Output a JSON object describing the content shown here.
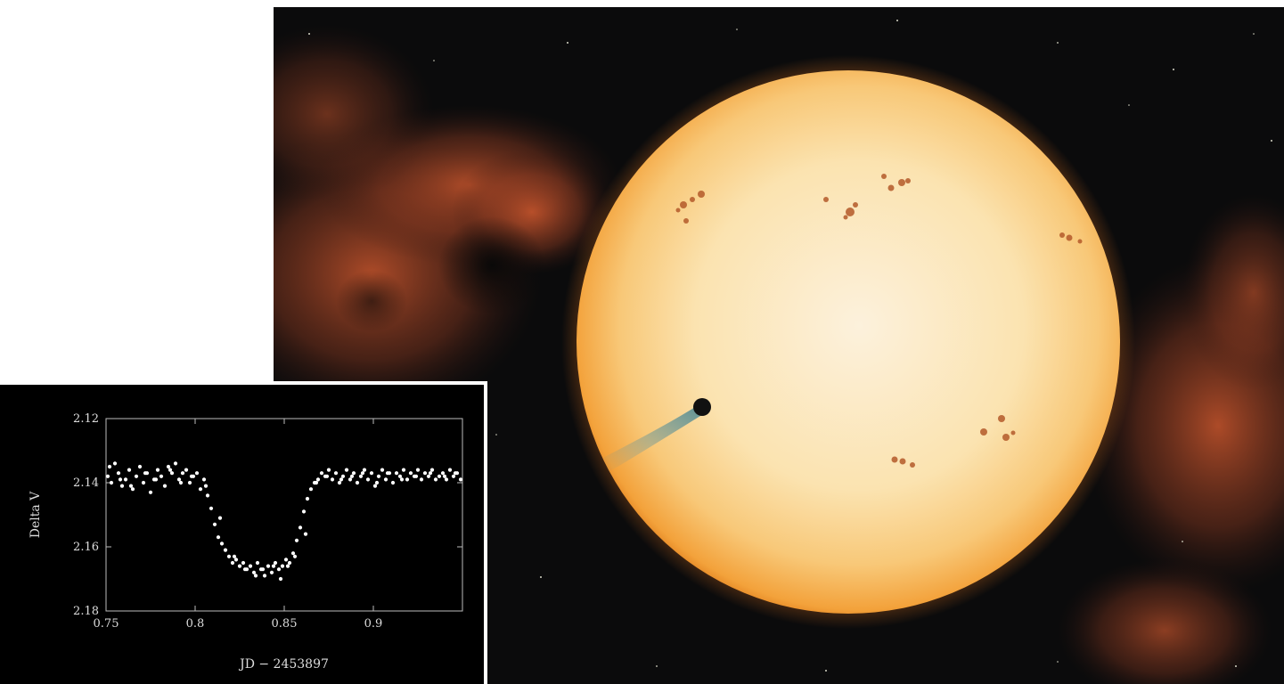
{
  "chart_data": {
    "type": "scatter",
    "title": "",
    "xlabel": "JD − 2453897",
    "ylabel": "Delta V",
    "xlim": [
      0.75,
      0.95
    ],
    "ylim": [
      2.12,
      2.18
    ],
    "y_inverted": true,
    "x_ticks": [
      0.75,
      0.8,
      0.85,
      0.9
    ],
    "x_tick_labels": [
      "0.75",
      "0.8",
      "0.85",
      "0.9"
    ],
    "y_ticks": [
      2.12,
      2.14,
      2.16,
      2.18
    ],
    "y_tick_labels": [
      "2.12",
      "2.14",
      "2.16",
      "2.18"
    ],
    "grid": false,
    "point_color": "#ffffff",
    "background_color": "#000000",
    "series": [
      {
        "x": [
          0.751,
          0.753,
          0.755,
          0.757,
          0.759,
          0.761,
          0.763,
          0.765,
          0.767,
          0.769,
          0.771,
          0.773,
          0.775,
          0.777,
          0.779,
          0.781,
          0.783,
          0.785,
          0.787,
          0.789,
          0.791,
          0.793,
          0.795,
          0.797,
          0.799,
          0.801,
          0.803,
          0.805,
          0.807,
          0.809,
          0.811,
          0.813,
          0.815,
          0.817,
          0.819,
          0.821,
          0.823,
          0.825,
          0.827,
          0.829,
          0.831,
          0.833,
          0.835,
          0.837,
          0.839,
          0.841,
          0.843,
          0.845,
          0.847,
          0.849,
          0.851,
          0.853,
          0.855,
          0.857,
          0.859,
          0.861,
          0.863,
          0.865,
          0.867,
          0.869,
          0.871,
          0.873,
          0.875,
          0.877,
          0.879,
          0.881,
          0.883,
          0.885,
          0.887,
          0.889,
          0.891,
          0.893,
          0.895,
          0.897,
          0.899,
          0.901,
          0.903,
          0.905,
          0.907,
          0.909,
          0.911,
          0.913,
          0.915,
          0.917,
          0.919,
          0.921,
          0.923,
          0.925,
          0.927,
          0.929,
          0.931,
          0.933,
          0.935,
          0.937,
          0.939,
          0.941,
          0.943,
          0.945,
          0.947,
          0.949,
          0.752,
          0.758,
          0.764,
          0.772,
          0.778,
          0.786,
          0.792,
          0.798,
          0.806,
          0.814,
          0.822,
          0.828,
          0.834,
          0.838,
          0.844,
          0.848,
          0.852,
          0.856,
          0.862,
          0.868,
          0.874,
          0.882,
          0.888,
          0.894,
          0.902,
          0.908,
          0.916,
          0.924,
          0.932,
          0.94,
          0.946
        ],
        "y": [
          2.138,
          2.14,
          2.134,
          2.137,
          2.141,
          2.139,
          2.136,
          2.142,
          2.138,
          2.135,
          2.14,
          2.137,
          2.143,
          2.139,
          2.136,
          2.138,
          2.141,
          2.135,
          2.137,
          2.134,
          2.139,
          2.137,
          2.136,
          2.14,
          2.138,
          2.137,
          2.142,
          2.139,
          2.144,
          2.148,
          2.153,
          2.157,
          2.159,
          2.161,
          2.163,
          2.165,
          2.164,
          2.166,
          2.165,
          2.167,
          2.166,
          2.168,
          2.165,
          2.167,
          2.169,
          2.166,
          2.168,
          2.165,
          2.167,
          2.166,
          2.164,
          2.165,
          2.162,
          2.158,
          2.154,
          2.149,
          2.145,
          2.142,
          2.14,
          2.139,
          2.137,
          2.138,
          2.136,
          2.139,
          2.137,
          2.14,
          2.138,
          2.136,
          2.139,
          2.137,
          2.14,
          2.138,
          2.136,
          2.139,
          2.137,
          2.141,
          2.138,
          2.136,
          2.139,
          2.137,
          2.14,
          2.137,
          2.138,
          2.136,
          2.139,
          2.137,
          2.138,
          2.136,
          2.139,
          2.137,
          2.138,
          2.136,
          2.139,
          2.138,
          2.137,
          2.139,
          2.136,
          2.138,
          2.137,
          2.139,
          2.135,
          2.139,
          2.141,
          2.137,
          2.139,
          2.136,
          2.14,
          2.138,
          2.141,
          2.151,
          2.163,
          2.167,
          2.169,
          2.167,
          2.166,
          2.17,
          2.166,
          2.163,
          2.156,
          2.14,
          2.138,
          2.139,
          2.138,
          2.137,
          2.14,
          2.137,
          2.139,
          2.138,
          2.137,
          2.138,
          2.137
        ]
      }
    ]
  },
  "scene": {
    "star_color": "#fbe6b4",
    "star_limb_color": "#f59a2a",
    "nebula_color": "#c4512a",
    "space_color": "#0b0b0c",
    "planet_color": "#111111",
    "tail_color": "#4f7e86"
  }
}
